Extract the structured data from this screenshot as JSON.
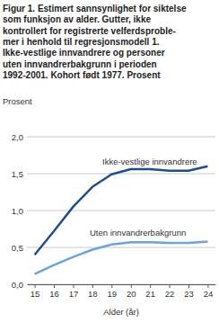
{
  "chart_data": {
    "type": "line",
    "title": "Figur 1. Estimert sannsynlighet for siktelse\nsom funksjon av alder. Gutter, ikke\nkontrollert for registrerte velferdsproble-\nmer i henhold til regresjonsmodell 1.\nIkke-vestlige innvandrere og personer\nuten innvandrerbakgrunn i perioden\n1992-2001. Kohort født 1977. Prosent",
    "y_label": "Prosent",
    "x_label": "Alder (år)",
    "x": [
      15,
      16,
      17,
      18,
      19,
      20,
      21,
      22,
      23,
      24
    ],
    "series": [
      {
        "name": "Ikke-vestlige innvandrere",
        "color": "#1f4e8c",
        "values": [
          0.4,
          0.72,
          1.05,
          1.32,
          1.49,
          1.56,
          1.56,
          1.54,
          1.54,
          1.6
        ]
      },
      {
        "name": "Uten innvandrerbakgrunn",
        "color": "#6fa3d8",
        "values": [
          0.14,
          0.26,
          0.37,
          0.47,
          0.54,
          0.57,
          0.57,
          0.56,
          0.56,
          0.58
        ]
      }
    ],
    "xlim": [
      14.6,
      24.4
    ],
    "xticks": [
      15,
      16,
      17,
      18,
      19,
      20,
      21,
      22,
      23,
      24
    ],
    "ylim": [
      0,
      2
    ],
    "yticks": [
      {
        "value": 0,
        "label": "0,0"
      },
      {
        "value": 0.5,
        "label": "0,5"
      },
      {
        "value": 1,
        "label": "1,0"
      },
      {
        "value": 1.5,
        "label": "1,5"
      },
      {
        "value": 2,
        "label": "2,0"
      }
    ],
    "grid": true
  }
}
